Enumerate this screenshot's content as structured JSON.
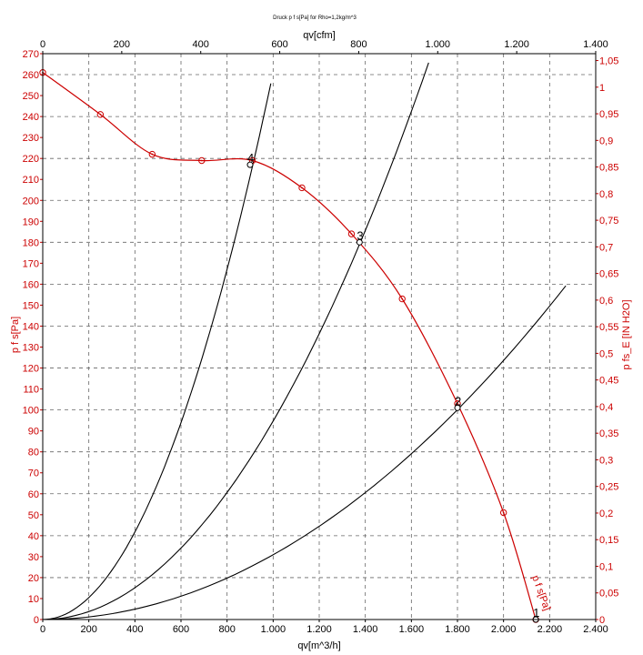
{
  "chart_data": {
    "type": "line",
    "title": "Druck p f s[Pa] for Rho=1,2kg/m^3",
    "xlabel": "qv[m^3/h]",
    "x2label": "qv[cfm]",
    "ylabel": "p f s[Pa]",
    "y2label": "p fs_E [IN H2O]",
    "series_label": "p f s[Pa]",
    "xlim": [
      0,
      2400
    ],
    "ylim": [
      0,
      270
    ],
    "x2lim": [
      0,
      1400
    ],
    "y2lim": [
      0,
      1.0629
    ],
    "grid": true,
    "x_ticks": [
      "0",
      "200",
      "400",
      "600",
      "800",
      "1.000",
      "1.200",
      "1.400",
      "1.600",
      "1.800",
      "2.000",
      "2.200",
      "2.400"
    ],
    "x2_ticks": [
      "0",
      "200",
      "400",
      "600",
      "800",
      "1.000",
      "1.200",
      "1.400"
    ],
    "y_ticks": [
      "0",
      "10",
      "20",
      "30",
      "40",
      "50",
      "60",
      "70",
      "80",
      "90",
      "100",
      "110",
      "120",
      "130",
      "140",
      "150",
      "160",
      "170",
      "180",
      "190",
      "200",
      "210",
      "220",
      "230",
      "240",
      "250",
      "260",
      "270"
    ],
    "y2_ticks": [
      "0",
      "0,05",
      "0,1",
      "0,15",
      "0,2",
      "0,25",
      "0,3",
      "0,35",
      "0,4",
      "0,45",
      "0,5",
      "0,55",
      "0,6",
      "0,65",
      "0,7",
      "0,75",
      "0,8",
      "0,85",
      "0,9",
      "0,95",
      "1",
      "1,05"
    ],
    "fan_curve": {
      "color": "#cc0000",
      "x": [
        0,
        250,
        475,
        690,
        910,
        1125,
        1340,
        1560,
        1800,
        2000,
        2140
      ],
      "y": [
        261,
        241,
        222,
        219,
        219,
        206,
        184,
        153,
        103,
        51,
        0
      ]
    },
    "system_curves": [
      {
        "color": "#000000",
        "k": 0.000261,
        "x_max": 990
      },
      {
        "color": "#000000",
        "k": 9.47e-05,
        "x_max": 1675
      },
      {
        "color": "#000000",
        "k": 3.09e-05,
        "x_max": 2270
      }
    ],
    "operating_points": [
      {
        "label": "1",
        "x": 2140,
        "y": 0
      },
      {
        "label": "2",
        "x": 1800,
        "y": 101
      },
      {
        "label": "3",
        "x": 1375,
        "y": 180
      },
      {
        "label": "4",
        "x": 900,
        "y": 217
      }
    ]
  }
}
